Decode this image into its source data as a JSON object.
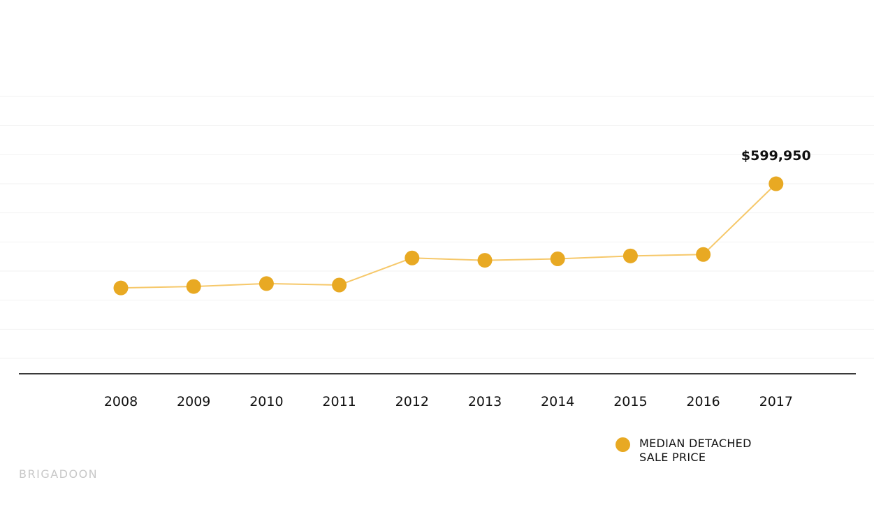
{
  "colors": {
    "marker": "#E8A923",
    "line": "#F6C86A",
    "axis": "#3a3a3a",
    "grid": "#f2f2f2",
    "brand_text": "#c8c8c8"
  },
  "chart_data": {
    "type": "line",
    "categories": [
      "2008",
      "2009",
      "2010",
      "2011",
      "2012",
      "2013",
      "2014",
      "2015",
      "2016",
      "2017"
    ],
    "ylim": [
      0,
      900000
    ],
    "grid": true,
    "series": [
      {
        "name": "MEDIAN DETACHED SALE PRICE",
        "values": [
          242000,
          247000,
          257000,
          252000,
          345000,
          337000,
          342000,
          352000,
          357000,
          599950
        ]
      }
    ],
    "annotations": [
      {
        "category": "2017",
        "text": "$599,950"
      }
    ],
    "legend_placement": "bottom-right"
  },
  "legend": {
    "label_line1": "MEDIAN DETACHED",
    "label_line2": "SALE PRICE"
  },
  "brand": "BRIGADOON"
}
